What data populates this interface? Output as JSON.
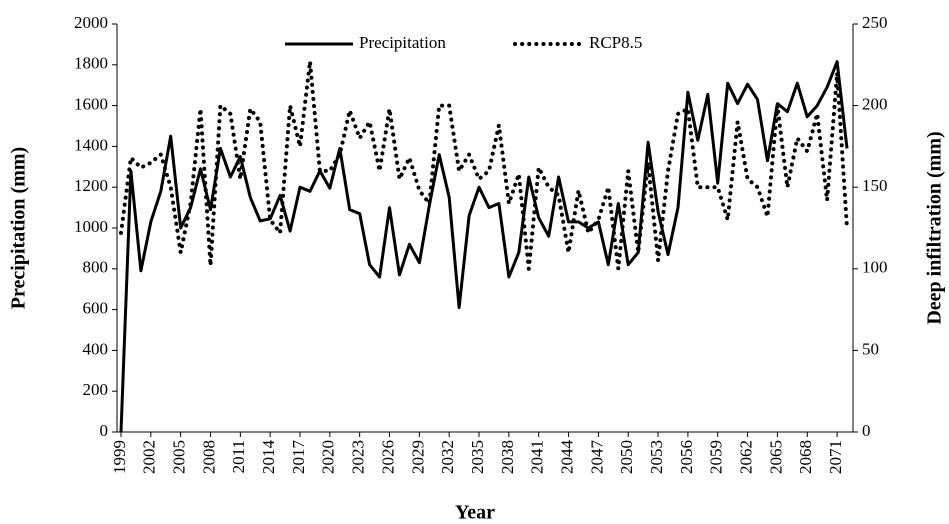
{
  "chart_data": {
    "type": "line",
    "xlabel": "Year",
    "ylabel": "Precipitation (mm)",
    "y2label": "Deep infiltration (mm)",
    "x": [
      1999,
      2000,
      2001,
      2002,
      2003,
      2004,
      2005,
      2006,
      2007,
      2008,
      2009,
      2010,
      2011,
      2012,
      2013,
      2014,
      2015,
      2016,
      2017,
      2018,
      2019,
      2020,
      2021,
      2022,
      2023,
      2024,
      2025,
      2026,
      2027,
      2028,
      2029,
      2030,
      2031,
      2032,
      2033,
      2034,
      2035,
      2036,
      2037,
      2038,
      2039,
      2040,
      2041,
      2042,
      2043,
      2044,
      2045,
      2046,
      2047,
      2048,
      2049,
      2050,
      2051,
      2052,
      2053,
      2054,
      2055,
      2056,
      2057,
      2058,
      2059,
      2060,
      2061,
      2062,
      2063,
      2064,
      2065,
      2066,
      2067,
      2068,
      2069,
      2070,
      2071,
      2072
    ],
    "series": [
      {
        "name": "Precipitation",
        "color": "#000000",
        "style": "solid",
        "values": [
          0,
          1280,
          790,
          1030,
          1180,
          1450,
          1000,
          1100,
          1290,
          1090,
          1390,
          1250,
          1350,
          1150,
          1035,
          1045,
          1160,
          985,
          1200,
          1180,
          1280,
          1195,
          1390,
          1090,
          1070,
          820,
          760,
          1100,
          770,
          920,
          830,
          1110,
          1360,
          1150,
          610,
          1060,
          1200,
          1100,
          1120,
          760,
          880,
          1250,
          1050,
          960,
          1250,
          1030,
          1030,
          1000,
          1030,
          820,
          1120,
          820,
          880,
          1420,
          1080,
          870,
          1100,
          1665,
          1430,
          1655,
          1220,
          1710,
          1610,
          1705,
          1630,
          1330,
          1610,
          1570,
          1710,
          1545,
          1600,
          1690,
          1815,
          1390
        ]
      },
      {
        "name": "RCP8.5",
        "color": "#000000",
        "style": "dotted",
        "axis": "y2",
        "values": [
          122,
          168,
          162,
          165,
          170,
          150,
          110,
          140,
          198,
          102,
          200,
          195,
          155,
          198,
          190,
          130,
          122,
          200,
          175,
          227,
          160,
          160,
          170,
          197,
          180,
          190,
          160,
          198,
          155,
          168,
          148,
          140,
          200,
          200,
          160,
          170,
          155,
          160,
          188,
          140,
          158,
          100,
          162,
          150,
          145,
          110,
          148,
          122,
          130,
          150,
          100,
          160,
          110,
          165,
          105,
          160,
          195,
          198,
          150,
          150,
          150,
          130,
          190,
          155,
          150,
          132,
          200,
          150,
          180,
          172,
          195,
          142,
          220,
          125
        ]
      }
    ],
    "xlim": [
      1998.6,
      2072.6
    ],
    "xticks": [
      1999,
      2002,
      2005,
      2008,
      2011,
      2014,
      2017,
      2020,
      2023,
      2026,
      2029,
      2032,
      2035,
      2038,
      2041,
      2044,
      2047,
      2050,
      2053,
      2056,
      2059,
      2062,
      2065,
      2068,
      2071
    ],
    "ylim": [
      0,
      2000
    ],
    "yticks": [
      0,
      200,
      400,
      600,
      800,
      1000,
      1200,
      1400,
      1600,
      1800,
      2000
    ],
    "y2lim": [
      0,
      250
    ],
    "y2ticks": [
      0,
      50,
      100,
      150,
      200,
      250
    ],
    "legend": "top"
  }
}
